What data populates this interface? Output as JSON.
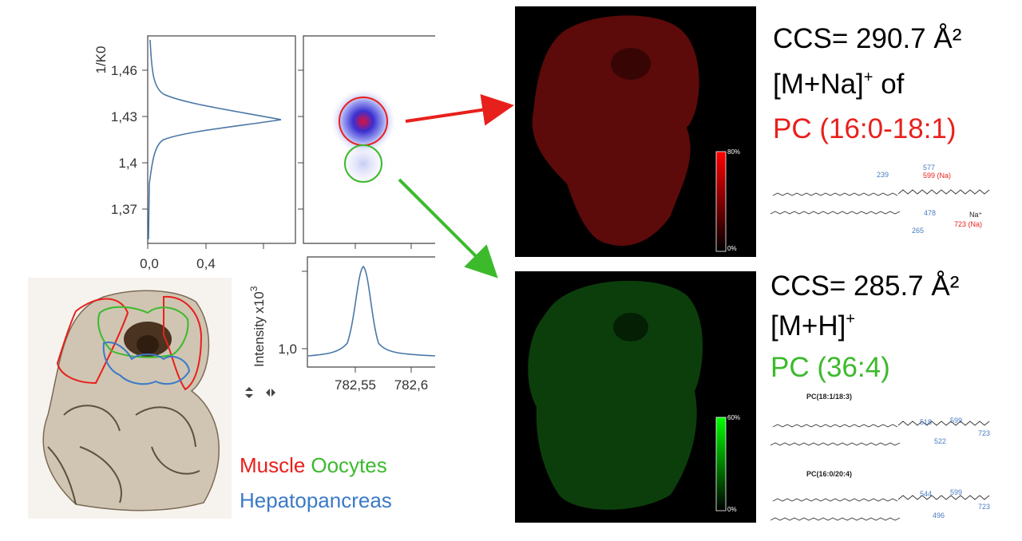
{
  "mobility_plot": {
    "y_label": "1/K0",
    "y_ticks": [
      "1,46",
      "1,43",
      "1,4",
      "1,37"
    ],
    "x_ticks": [
      "0,0",
      "0,4"
    ]
  },
  "mass_plot": {
    "y_label": "Intensity",
    "y_multiplier": "x10",
    "y_exponent": "3",
    "y_ticks": [
      "1,0"
    ],
    "x_ticks": [
      "782,55",
      "782,6"
    ]
  },
  "tissue_legend": [
    "Muscle",
    "Oocytes",
    "Hepatopancreas"
  ],
  "top_panel": {
    "ccs": "CCS= 290.7 Å²",
    "ion": "[M+Na]",
    "charge": "+",
    "ion_suffix": " of",
    "lipid": "PC (16:0-18:1)",
    "colorbar": [
      "80%",
      "0%"
    ],
    "fragments": [
      "239",
      "577",
      "599 (Na)",
      "478",
      "265",
      "723 (Na)",
      "Na⁺"
    ]
  },
  "bottom_panel": {
    "ccs": "CCS= 285.7 Å²",
    "ion": "[M+H]",
    "charge": "+",
    "lipid": "PC (36:4)",
    "colorbar": [
      "60%",
      "0%"
    ],
    "structures": [
      {
        "name": "PC(18:1/18:3)",
        "fragments": [
          "518",
          "599",
          "522",
          "723"
        ]
      },
      {
        "name": "PC(16:0/20:4)",
        "fragments": [
          "544",
          "599",
          "496",
          "723"
        ]
      }
    ]
  }
}
